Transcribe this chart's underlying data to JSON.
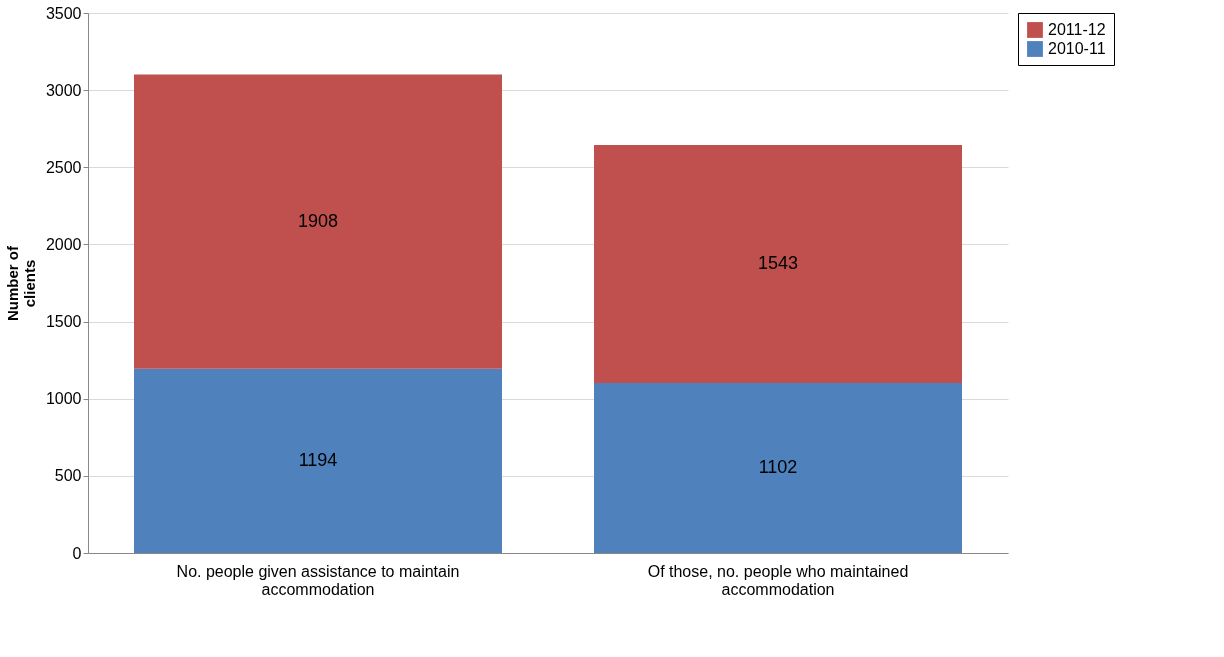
{
  "chart_data": {
    "type": "bar",
    "stacked": true,
    "ylabel": "Number of clients",
    "categories": [
      "No. people given assistance to maintain accommodation",
      "Of those, no. people who maintained accommodation"
    ],
    "series": [
      {
        "name": "2010-11",
        "color": "#4f81bd",
        "values": [
          1194,
          1102
        ]
      },
      {
        "name": "2011-12",
        "color": "#c0504d",
        "values": [
          1908,
          1543
        ]
      }
    ],
    "ylim": [
      0,
      3500
    ],
    "yticks": [
      0,
      500,
      1000,
      1500,
      2000,
      2500,
      3000,
      3500
    ],
    "grid": "y",
    "legend": "right",
    "data_labels": true
  }
}
